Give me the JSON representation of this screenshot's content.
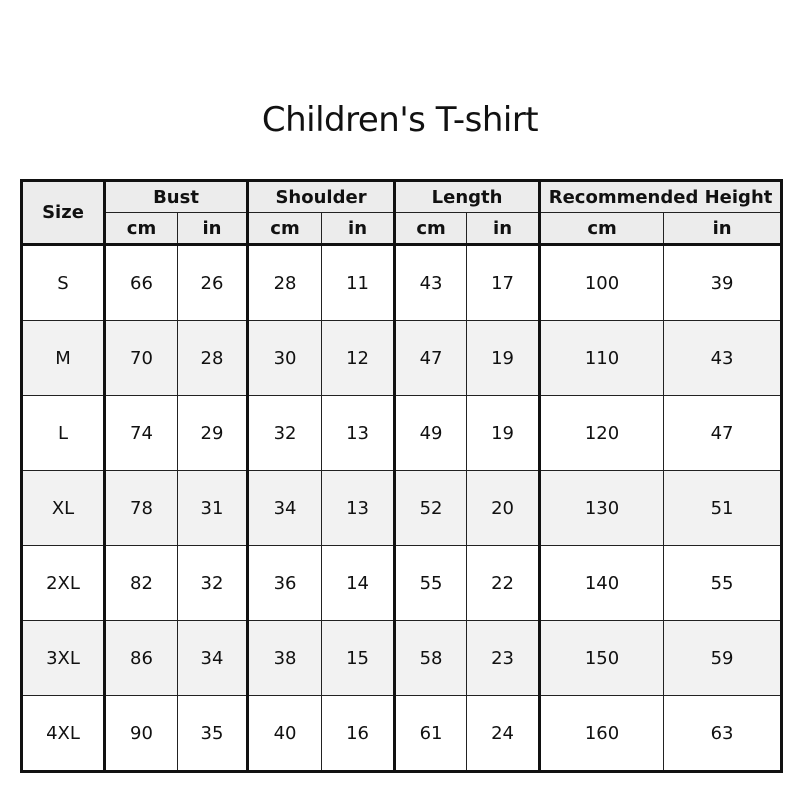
{
  "title": "Children's T-shirt",
  "table": {
    "size_header": "Size",
    "groups": [
      "Bust",
      "Shoulder",
      "Length",
      "Recommended Height"
    ],
    "units": [
      "cm",
      "in",
      "cm",
      "in",
      "cm",
      "in",
      "cm",
      "in"
    ],
    "rows": [
      [
        "S",
        "66",
        "26",
        "28",
        "11",
        "43",
        "17",
        "100",
        "39"
      ],
      [
        "M",
        "70",
        "28",
        "30",
        "12",
        "47",
        "19",
        "110",
        "43"
      ],
      [
        "L",
        "74",
        "29",
        "32",
        "13",
        "49",
        "19",
        "120",
        "47"
      ],
      [
        "XL",
        "78",
        "31",
        "34",
        "13",
        "52",
        "20",
        "130",
        "51"
      ],
      [
        "2XL",
        "82",
        "32",
        "36",
        "14",
        "55",
        "22",
        "140",
        "55"
      ],
      [
        "3XL",
        "86",
        "34",
        "38",
        "15",
        "58",
        "23",
        "150",
        "59"
      ],
      [
        "4XL",
        "90",
        "35",
        "40",
        "16",
        "61",
        "24",
        "160",
        "63"
      ]
    ],
    "alt_row_color": "#f2f2f2",
    "header_color": "#ececec"
  }
}
